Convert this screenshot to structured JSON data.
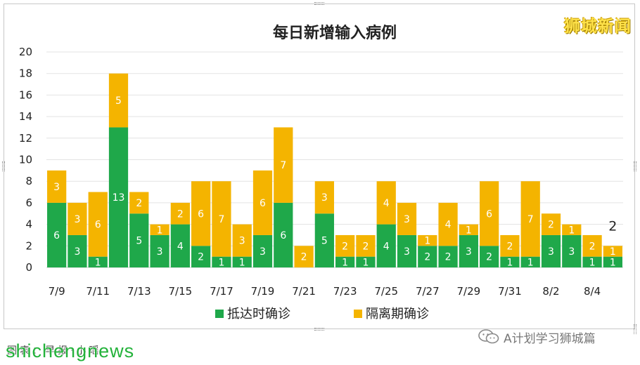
{
  "brand": "狮城新闻",
  "footer": {
    "caption": "图表：早报·小瑶",
    "watermark": "shichengnews",
    "wechat_label": "A计划学习狮城篇"
  },
  "colors": {
    "arrival": "#1fa84a",
    "quarantine": "#f4b400",
    "grid": "#e3e3e3",
    "bar_label": "#ffffff"
  },
  "chart_data": {
    "type": "bar",
    "stacked": true,
    "title": "每日新增输入病例",
    "categories": [
      "7/9",
      "7/10",
      "7/11",
      "7/12",
      "7/13",
      "7/14",
      "7/15",
      "7/16",
      "7/17",
      "7/18",
      "7/19",
      "7/20",
      "7/21",
      "7/22",
      "7/23",
      "7/24",
      "7/25",
      "7/26",
      "7/27",
      "7/28",
      "7/29",
      "7/30",
      "7/31",
      "8/1",
      "8/2",
      "8/3",
      "8/4",
      "8/5"
    ],
    "tick_labels": [
      "7/9",
      "7/11",
      "7/13",
      "7/15",
      "7/17",
      "7/19",
      "7/21",
      "7/23",
      "7/25",
      "7/27",
      "7/29",
      "7/31",
      "8/2",
      "8/4"
    ],
    "series": [
      {
        "name": "抵达时确诊",
        "color": "#1fa84a",
        "values": [
          6,
          3,
          1,
          13,
          5,
          3,
          4,
          2,
          1,
          1,
          3,
          6,
          0,
          5,
          1,
          1,
          4,
          3,
          2,
          2,
          3,
          2,
          1,
          1,
          3,
          3,
          1,
          1
        ]
      },
      {
        "name": "隔离期确诊",
        "color": "#f4b400",
        "values": [
          3,
          3,
          6,
          5,
          2,
          1,
          2,
          6,
          7,
          3,
          6,
          7,
          2,
          3,
          2,
          2,
          4,
          3,
          1,
          4,
          1,
          6,
          2,
          7,
          2,
          1,
          2,
          1
        ]
      }
    ],
    "ylim": [
      0,
      20
    ],
    "yticks": [
      0,
      2,
      4,
      6,
      8,
      10,
      12,
      14,
      16,
      18,
      20
    ],
    "grid": true,
    "legend_position": "bottom",
    "annotations": [
      {
        "category": "8/5",
        "text": "2"
      }
    ]
  }
}
